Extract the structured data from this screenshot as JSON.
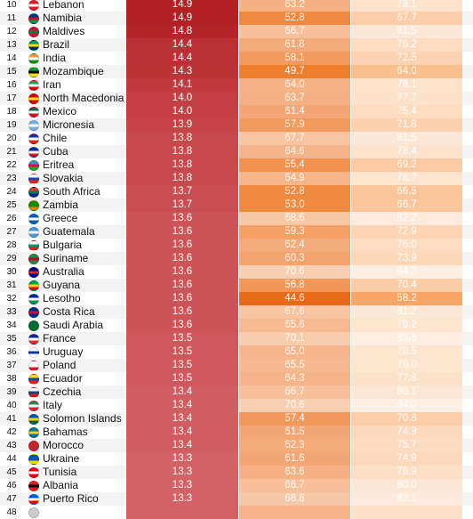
{
  "rows": [
    {
      "rank": "10",
      "country": "Lebanon",
      "v1": "14.9",
      "v2": "63.2",
      "v3": "78.1",
      "flag": [
        "#e31b23",
        "#ffffff",
        "#e31b23"
      ],
      "c1": "#b32024",
      "c2": "#f5b183",
      "c3": "#fde3cc"
    },
    {
      "rank": "11",
      "country": "Namibia",
      "v1": "14.9",
      "v2": "52.8",
      "v3": "67.7",
      "flag": [
        "#003580",
        "#d21034",
        "#009543"
      ],
      "c1": "#b32024",
      "c2": "#f0893f",
      "c3": "#fbcda8"
    },
    {
      "rank": "12",
      "country": "Maldives",
      "v1": "14.8",
      "v2": "66.7",
      "v3": "81.5",
      "flag": [
        "#d21034",
        "#007e3a",
        "#d21034"
      ],
      "c1": "#b52428",
      "c2": "#f7c09a",
      "c3": "#fde8d7"
    },
    {
      "rank": "13",
      "country": "Brazil",
      "v1": "14.4",
      "v2": "61.8",
      "v3": "76.2",
      "flag": [
        "#009c3b",
        "#ffdf00",
        "#002776"
      ],
      "c1": "#bb3034",
      "c2": "#f4a978",
      "c3": "#fddcc2"
    },
    {
      "rank": "14",
      "country": "India",
      "v1": "14.4",
      "v2": "58.1",
      "v3": "72.5",
      "flag": [
        "#ff9933",
        "#ffffff",
        "#138808"
      ],
      "c1": "#bb3034",
      "c2": "#f29a5e",
      "c3": "#fcd3b2"
    },
    {
      "rank": "15",
      "country": "Mozambique",
      "v1": "14.3",
      "v2": "49.7",
      "v3": "64.0",
      "flag": [
        "#009a44",
        "#000000",
        "#fce100"
      ],
      "c1": "#bd3437",
      "c2": "#ee7f2e",
      "c3": "#f9c08f"
    },
    {
      "rank": "16",
      "country": "Iran",
      "v1": "14.1",
      "v2": "64.0",
      "v3": "78.1",
      "flag": [
        "#239f40",
        "#ffffff",
        "#da0000"
      ],
      "c1": "#c23a3e",
      "c2": "#f5b287",
      "c3": "#fde3cc"
    },
    {
      "rank": "17",
      "country": "North Macedonia",
      "v1": "14.0",
      "v2": "63.7",
      "v3": "77.7",
      "flag": [
        "#d20000",
        "#ffe600",
        "#d20000"
      ],
      "c1": "#c43f43",
      "c2": "#f5b186",
      "c3": "#fde2c9"
    },
    {
      "rank": "18",
      "country": "Mexico",
      "v1": "14.0",
      "v2": "61.4",
      "v3": "75.4",
      "flag": [
        "#006847",
        "#ffffff",
        "#ce1126"
      ],
      "c1": "#c43f43",
      "c2": "#f4a675",
      "c3": "#fddcbf"
    },
    {
      "rank": "19",
      "country": "Micronesia",
      "v1": "13.9",
      "v2": "57.9",
      "v3": "71.8",
      "flag": [
        "#75b2dd",
        "#ffffff",
        "#75b2dd"
      ],
      "c1": "#c64447",
      "c2": "#f2995d",
      "c3": "#fcd1b0"
    },
    {
      "rank": "20",
      "country": "Chile",
      "v1": "13.8",
      "v2": "67.7",
      "v3": "81.5",
      "flag": [
        "#0039a6",
        "#ffffff",
        "#d52b1e"
      ],
      "c1": "#c8494c",
      "c2": "#f7c4a1",
      "c3": "#fde8d7"
    },
    {
      "rank": "21",
      "country": "Cuba",
      "v1": "13.8",
      "v2": "64.6",
      "v3": "78.4",
      "flag": [
        "#002a8f",
        "#ffffff",
        "#cf142b"
      ],
      "c1": "#c8494c",
      "c2": "#f5b58b",
      "c3": "#fde3cd"
    },
    {
      "rank": "22",
      "country": "Eritrea",
      "v1": "13.8",
      "v2": "55.4",
      "v3": "69.2",
      "flag": [
        "#4189dd",
        "#ea0437",
        "#12ad2b"
      ],
      "c1": "#c8494c",
      "c2": "#f19250",
      "c3": "#fbcaa2"
    },
    {
      "rank": "23",
      "country": "Slovakia",
      "v1": "13.8",
      "v2": "64.9",
      "v3": "78.7",
      "flag": [
        "#ffffff",
        "#0b4ea2",
        "#ee1c25"
      ],
      "c1": "#c8494c",
      "c2": "#f5b68c",
      "c3": "#fde4ce"
    },
    {
      "rank": "24",
      "country": "South Africa",
      "v1": "13.7",
      "v2": "52.8",
      "v3": "66.5",
      "flag": [
        "#de3831",
        "#007a4d",
        "#002395"
      ],
      "c1": "#ca4e51",
      "c2": "#f0893f",
      "c3": "#fac59b"
    },
    {
      "rank": "25",
      "country": "Zambia",
      "v1": "13.7",
      "v2": "53.0",
      "v3": "66.7",
      "flag": [
        "#198a00",
        "#198a00",
        "#ef7d00"
      ],
      "c1": "#ca4e51",
      "c2": "#f08a41",
      "c3": "#fac69c"
    },
    {
      "rank": "26",
      "country": "Greece",
      "v1": "13.6",
      "v2": "68.6",
      "v3": "82.2",
      "flag": [
        "#0d5eaf",
        "#ffffff",
        "#0d5eaf"
      ],
      "c1": "#cc5356",
      "c2": "#f7c8a6",
      "c3": "#feeadb"
    },
    {
      "rank": "27",
      "country": "Guatemala",
      "v1": "13.6",
      "v2": "59.3",
      "v3": "72.9",
      "flag": [
        "#4997d0",
        "#ffffff",
        "#4997d0"
      ],
      "c1": "#cc5356",
      "c2": "#f39f66",
      "c3": "#fcd4b4"
    },
    {
      "rank": "28",
      "country": "Bulgaria",
      "v1": "13.6",
      "v2": "62.4",
      "v3": "76.0",
      "flag": [
        "#ffffff",
        "#00966e",
        "#d62612"
      ],
      "c1": "#cc5356",
      "c2": "#f4ab7b",
      "c3": "#fddcc1"
    },
    {
      "rank": "29",
      "country": "Suriname",
      "v1": "13.6",
      "v2": "60.3",
      "v3": "73.9",
      "flag": [
        "#377e3f",
        "#b40a2d",
        "#377e3f"
      ],
      "c1": "#cc5356",
      "c2": "#f3a36c",
      "c3": "#fcd7b8"
    },
    {
      "rank": "30",
      "country": "Australia",
      "v1": "13.6",
      "v2": "70.6",
      "v3": "84.2",
      "flag": [
        "#00008b",
        "#d52b1e",
        "#00008b"
      ],
      "c1": "#cc5356",
      "c2": "#f8cfb0",
      "c3": "#feeee2"
    },
    {
      "rank": "31",
      "country": "Guyana",
      "v1": "13.6",
      "v2": "56.8",
      "v3": "70.4",
      "flag": [
        "#009e49",
        "#fcd116",
        "#ce1126"
      ],
      "c1": "#cc5356",
      "c2": "#f29757",
      "c3": "#fbcda7"
    },
    {
      "rank": "32",
      "country": "Lesotho",
      "v1": "13.6",
      "v2": "44.6",
      "v3": "58.2",
      "flag": [
        "#00209f",
        "#ffffff",
        "#009543"
      ],
      "c1": "#cc5356",
      "c2": "#e9691a",
      "c3": "#f6a768"
    },
    {
      "rank": "33",
      "country": "Costa Rica",
      "v1": "13.6",
      "v2": "67.6",
      "v3": "81.2",
      "flag": [
        "#002b7f",
        "#ce1126",
        "#002b7f"
      ],
      "c1": "#cc5356",
      "c2": "#f7c4a0",
      "c3": "#fde7d6"
    },
    {
      "rank": "34",
      "country": "Saudi Arabia",
      "v1": "13.6",
      "v2": "65.6",
      "v3": "79.2",
      "flag": [
        "#006c35",
        "#006c35",
        "#006c35"
      ],
      "c1": "#cc5356",
      "c2": "#f6b991",
      "c3": "#fde5d0"
    },
    {
      "rank": "35",
      "country": "France",
      "v1": "13.5",
      "v2": "70.1",
      "v3": "83.6",
      "flag": [
        "#002395",
        "#ffffff",
        "#ed2939"
      ],
      "c1": "#ce585b",
      "c2": "#f8cdad",
      "c3": "#feede0"
    },
    {
      "rank": "36",
      "country": "Uruguay",
      "v1": "13.5",
      "v2": "65.0",
      "v3": "78.5",
      "flag": [
        "#ffffff",
        "#0038a8",
        "#ffffff"
      ],
      "c1": "#ce585b",
      "c2": "#f5b68d",
      "c3": "#fde4ce"
    },
    {
      "rank": "37",
      "country": "Poland",
      "v1": "13.5",
      "v2": "65.5",
      "v3": "79.0",
      "flag": [
        "#ffffff",
        "#ffffff",
        "#dc143c"
      ],
      "c1": "#ce585b",
      "c2": "#f6b890",
      "c3": "#fde5cf"
    },
    {
      "rank": "38",
      "country": "Ecuador",
      "v1": "13.5",
      "v2": "64.3",
      "v3": "77.8",
      "flag": [
        "#ffdd00",
        "#034ea2",
        "#ed1c24"
      ],
      "c1": "#ce585b",
      "c2": "#f5b389",
      "c3": "#fde2ca"
    },
    {
      "rank": "39",
      "country": "Czechia",
      "v1": "13.4",
      "v2": "66.7",
      "v3": "80.1",
      "flag": [
        "#ffffff",
        "#11457e",
        "#d7141a"
      ],
      "c1": "#d05d60",
      "c2": "#f7c09a",
      "c3": "#fde6d3"
    },
    {
      "rank": "40",
      "country": "Italy",
      "v1": "13.4",
      "v2": "70.6",
      "v3": "84.0",
      "flag": [
        "#009246",
        "#ffffff",
        "#ce2b37"
      ],
      "c1": "#d05d60",
      "c2": "#f8cfb0",
      "c3": "#feeee1"
    },
    {
      "rank": "41",
      "country": "Solomon Islands",
      "v1": "13.4",
      "v2": "57.4",
      "v3": "70.8",
      "flag": [
        "#0051ba",
        "#fcd116",
        "#215b33"
      ],
      "c1": "#d05d60",
      "c2": "#f2985a",
      "c3": "#fbcea9"
    },
    {
      "rank": "42",
      "country": "Bahamas",
      "v1": "13.4",
      "v2": "61.5",
      "v3": "74.9",
      "flag": [
        "#00778b",
        "#ffc72c",
        "#00778b"
      ],
      "c1": "#d05d60",
      "c2": "#f4a776",
      "c3": "#fcd9bd"
    },
    {
      "rank": "43",
      "country": "Morocco",
      "v1": "13.4",
      "v2": "62.3",
      "v3": "75.7",
      "flag": [
        "#c1272d",
        "#c1272d",
        "#c1272d"
      ],
      "c1": "#d05d60",
      "c2": "#f4aa7a",
      "c3": "#fddbc0"
    },
    {
      "rank": "44",
      "country": "Ukraine",
      "v1": "13.3",
      "v2": "61.6",
      "v3": "74.9",
      "flag": [
        "#0057b7",
        "#0057b7",
        "#ffd700"
      ],
      "c1": "#d26265",
      "c2": "#f4a776",
      "c3": "#fcd9bd"
    },
    {
      "rank": "45",
      "country": "Tunisia",
      "v1": "13.3",
      "v2": "63.6",
      "v3": "76.9",
      "flag": [
        "#e70013",
        "#ffffff",
        "#e70013"
      ],
      "c1": "#d26265",
      "c2": "#f5b085",
      "c3": "#fddfc6"
    },
    {
      "rank": "46",
      "country": "Albania",
      "v1": "13.3",
      "v2": "66.7",
      "v3": "80.0",
      "flag": [
        "#e41e20",
        "#000000",
        "#e41e20"
      ],
      "c1": "#d26265",
      "c2": "#f7c09a",
      "c3": "#fde6d3"
    },
    {
      "rank": "47",
      "country": "Puerto Rico",
      "v1": "13.3",
      "v2": "68.8",
      "v3": "82.1",
      "flag": [
        "#0050f0",
        "#ffffff",
        "#ed0000"
      ],
      "c1": "#d26265",
      "c2": "#f7c8a7",
      "c3": "#feeadb"
    },
    {
      "rank": "48",
      "country": "",
      "v1": "",
      "v2": "",
      "v3": "",
      "flag": [
        "#cccccc",
        "#cccccc",
        "#cccccc"
      ],
      "c1": "#d26265",
      "c2": "#f5b389",
      "c3": "#fde2ca"
    }
  ]
}
